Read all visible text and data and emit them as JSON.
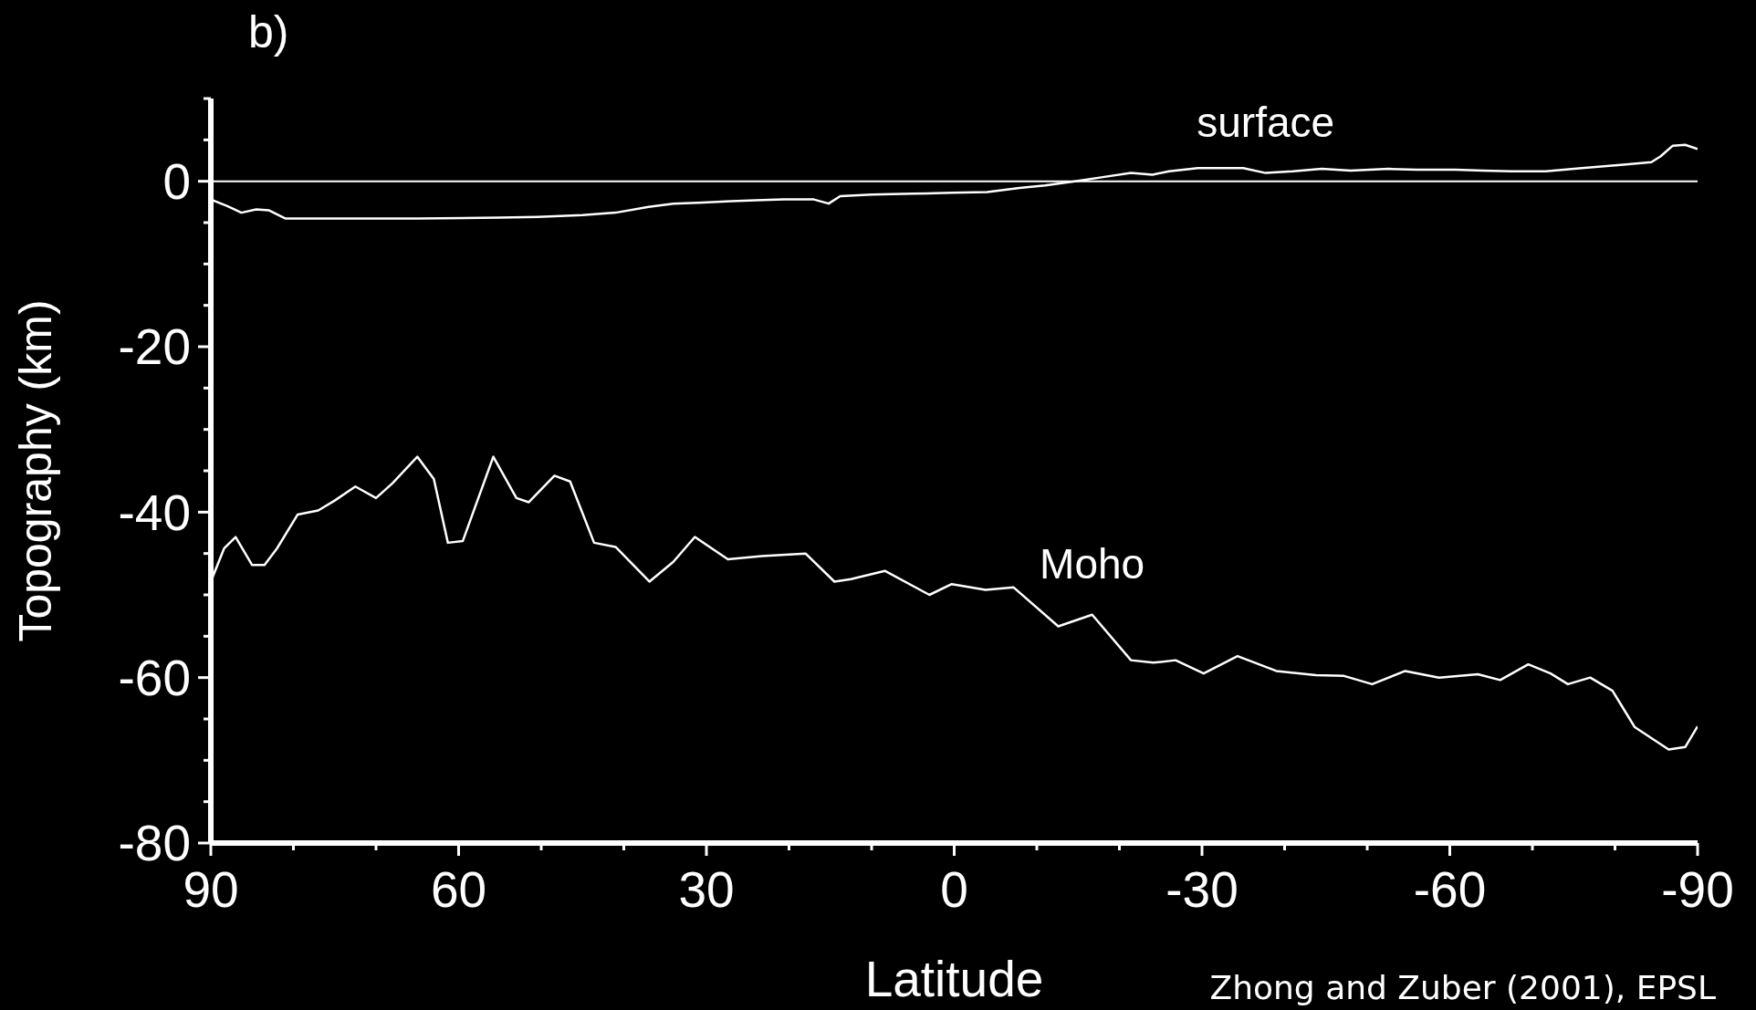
{
  "chart_data": {
    "type": "line",
    "title": "b)",
    "xlabel": "Latitude",
    "ylabel": "Topography (km)",
    "annotations": [
      "Zhong and Zuber (2001), EPSL"
    ],
    "xlim": [
      90,
      -90
    ],
    "xticks": [
      90,
      {
        "value": 80,
        "label": null
      },
      {
        "value": 70,
        "label": null
      },
      60,
      {
        "value": 50,
        "label": null
      },
      {
        "value": 40,
        "label": null
      },
      30,
      {
        "value": 20,
        "label": null
      },
      {
        "value": 10,
        "label": null
      },
      0,
      {
        "value": -10,
        "label": null
      },
      {
        "value": -20,
        "label": null
      },
      -30,
      {
        "value": -40,
        "label": null
      },
      {
        "value": -50,
        "label": null
      },
      -60,
      {
        "value": -70,
        "label": null
      },
      {
        "value": -80,
        "label": null
      },
      -90
    ],
    "ylim": [
      -80,
      10
    ],
    "yticks": [
      {
        "value": 10,
        "label": null
      },
      {
        "value": 5,
        "label": null
      },
      0,
      {
        "value": -5,
        "label": null
      },
      {
        "value": -10,
        "label": null
      },
      {
        "value": -15,
        "label": null
      },
      -20,
      {
        "value": -25,
        "label": null
      },
      {
        "value": -30,
        "label": null
      },
      {
        "value": -35,
        "label": null
      },
      -40,
      {
        "value": -45,
        "label": null
      },
      {
        "value": -50,
        "label": null
      },
      {
        "value": -55,
        "label": null
      },
      -60,
      {
        "value": -65,
        "label": null
      },
      {
        "value": -70,
        "label": null
      },
      {
        "value": -75,
        "label": null
      },
      -80
    ],
    "ref_lines": [
      {
        "axis": "y",
        "value": 0,
        "color": "#ffffff"
      }
    ],
    "grid": false,
    "legend": false,
    "marker": "none",
    "line_style": "solid",
    "series": [
      {
        "name": "surface",
        "color": "#ffffff",
        "x": [
          90,
          88,
          86.3,
          84.5,
          83,
          81,
          75,
          65,
          55,
          50.4,
          45,
          41,
          37,
          34,
          31,
          27,
          24,
          20.6,
          17,
          15.2,
          13.8,
          10,
          5,
          0.3,
          -4,
          -7.9,
          -11,
          -14.6,
          -18,
          -21.4,
          -24,
          -26,
          -29.5,
          -35,
          -37.7,
          -41,
          -44.5,
          -48,
          -52.6,
          -56,
          -60.7,
          -64,
          -67.5,
          -71.6,
          -76,
          -81,
          -84.4,
          -85.5,
          -87,
          -88.5,
          -90
        ],
        "values": [
          -2.2,
          -3,
          -3.8,
          -3.4,
          -3.5,
          -4.5,
          -4.5,
          -4.5,
          -4.4,
          -4.3,
          -4.1,
          -3.8,
          -3.1,
          -2.7,
          -2.6,
          -2.4,
          -2.3,
          -2.2,
          -2.2,
          -2.7,
          -1.8,
          -1.6,
          -1.5,
          -1.4,
          -1.3,
          -0.8,
          -0.5,
          0,
          0.5,
          1,
          0.8,
          1.2,
          1.6,
          1.6,
          1,
          1.2,
          1.5,
          1.3,
          1.5,
          1.4,
          1.4,
          1.3,
          1.2,
          1.2,
          1.6,
          2,
          2.3,
          3,
          4.3,
          4.4,
          3.9
        ]
      },
      {
        "name": "Moho",
        "color": "#ffffff",
        "x": [
          90,
          88.4,
          87,
          85,
          83.5,
          82,
          79.5,
          77,
          75,
          72.5,
          70,
          68,
          65,
          63,
          61.3,
          59.5,
          55.8,
          53,
          51.5,
          48.4,
          46.5,
          43.6,
          41,
          36.9,
          34,
          31.4,
          27.4,
          23.3,
          18,
          14.5,
          12.5,
          8.4,
          3,
          0.3,
          -3.8,
          -7.2,
          -12.6,
          -16.7,
          -21.4,
          -24.1,
          -26.8,
          -30.2,
          -34.3,
          -39,
          -43.8,
          -47.2,
          -50.6,
          -54.6,
          -58.7,
          -63.4,
          -66.1,
          -69.5,
          -72.2,
          -74.3,
          -77,
          -79.7,
          -82.4,
          -86.5,
          -88.5,
          -90
        ],
        "values": [
          -48.4,
          -44.4,
          -43,
          -46.4,
          -46.4,
          -44.4,
          -40.3,
          -39.8,
          -38.6,
          -36.9,
          -38.3,
          -36.5,
          -33.3,
          -36,
          -43.7,
          -43.5,
          -33.3,
          -38.3,
          -38.8,
          -35.6,
          -36.3,
          -43.7,
          -44.2,
          -48.4,
          -46,
          -43,
          -45.7,
          -45.3,
          -45,
          -48.4,
          -48.1,
          -47.1,
          -50,
          -48.7,
          -49.4,
          -49.1,
          -53.8,
          -52.4,
          -57.9,
          -58.2,
          -57.9,
          -59.5,
          -57.4,
          -59.2,
          -59.7,
          -59.8,
          -60.8,
          -59.2,
          -60,
          -59.6,
          -60.3,
          -58.4,
          -59.5,
          -60.8,
          -60,
          -61.6,
          -66,
          -68.7,
          -68.4,
          -65.9
        ]
      }
    ]
  }
}
